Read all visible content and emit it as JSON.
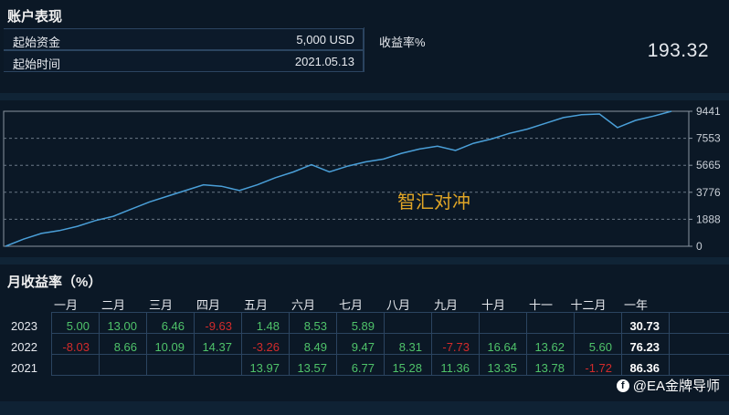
{
  "account": {
    "title": "账户表现",
    "capital_label": "起始资金",
    "capital_value": "5,000 USD",
    "start_label": "起始时间",
    "start_value": "2021.05.13",
    "return_label": "收益率%",
    "return_value": "193.32"
  },
  "chart_data": {
    "type": "line",
    "watermark": "智汇对冲",
    "yticks": [
      "9441",
      "7553",
      "5665",
      "3776",
      "1888",
      "0"
    ],
    "ylim": [
      0,
      9441
    ],
    "grid": true,
    "series": [
      {
        "values": [
          0,
          500,
          900,
          1100,
          1400,
          1800,
          2100,
          2600,
          3100,
          3500,
          3900,
          4300,
          4200,
          3900,
          4300,
          4800,
          5200,
          5700,
          5200,
          5600,
          5900,
          6100,
          6500,
          6800,
          7000,
          6700,
          7200,
          7500,
          7900,
          8200,
          8600,
          9000,
          9200,
          9250,
          8300,
          8800,
          9100,
          9441
        ]
      }
    ]
  },
  "monthly": {
    "title": "月收益率（%）",
    "headers": [
      "一月",
      "二月",
      "三月",
      "四月",
      "五月",
      "六月",
      "七月",
      "八月",
      "九月",
      "十月",
      "十一",
      "十二月",
      "一年"
    ],
    "rows": [
      {
        "year": "2023",
        "values": [
          "5.00",
          "13.00",
          "6.46",
          "-9.63",
          "1.48",
          "8.53",
          "5.89",
          "",
          "",
          "",
          "",
          "",
          "30.73"
        ]
      },
      {
        "year": "2022",
        "values": [
          "-8.03",
          "8.66",
          "10.09",
          "14.37",
          "-3.26",
          "8.49",
          "9.47",
          "8.31",
          "-7.73",
          "16.64",
          "13.62",
          "5.60",
          "76.23"
        ]
      },
      {
        "year": "2021",
        "values": [
          "",
          "",
          "",
          "",
          "13.97",
          "13.57",
          "6.77",
          "15.28",
          "11.36",
          "13.35",
          "13.78",
          "-1.72",
          "86.36"
        ]
      }
    ]
  },
  "watermark": {
    "icon": "facebook-icon",
    "text": "@EA金牌导师"
  },
  "colors": {
    "background": "#0b1826",
    "line": "#4a9fd8",
    "positive": "#4fc36a",
    "negative": "#d22b2b",
    "chart_watermark": "#e0a526"
  }
}
